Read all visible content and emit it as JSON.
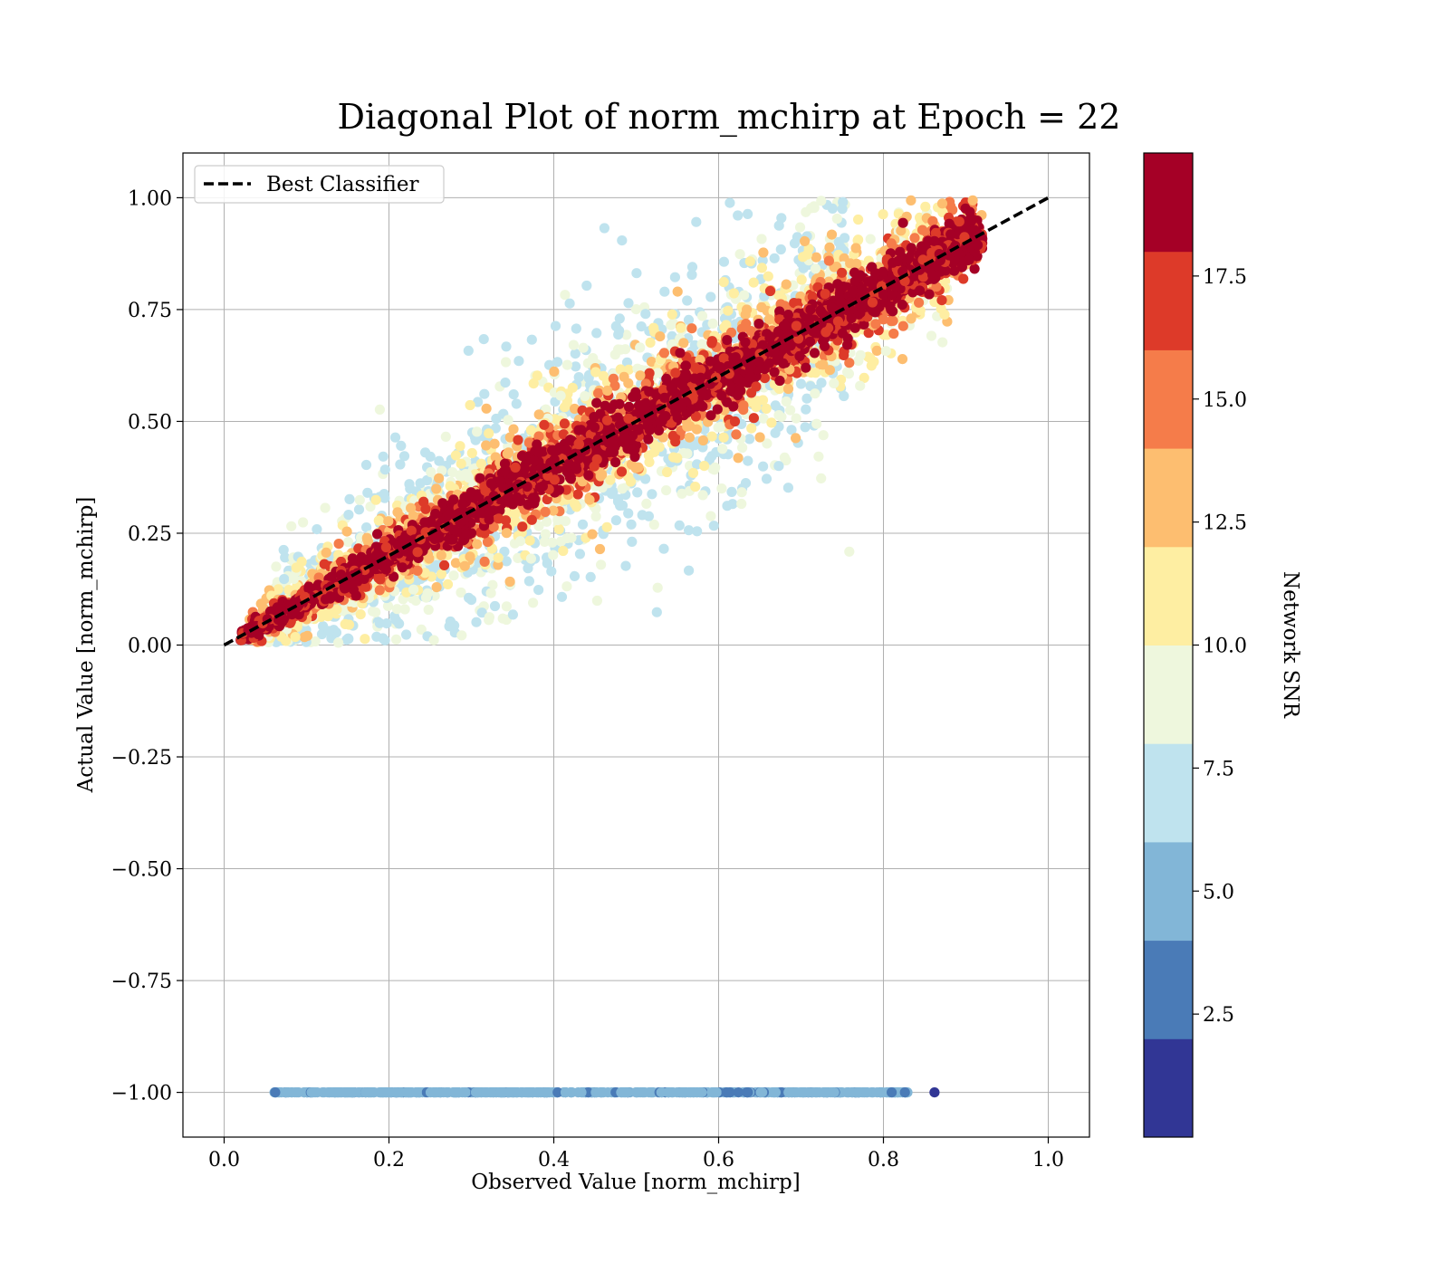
{
  "chart_data": {
    "type": "scatter",
    "title": "Diagonal Plot of norm_mchirp at Epoch = 22",
    "xlabel": "Observed Value [norm_mchirp]",
    "ylabel": "Actual Value [norm_mchirp]",
    "xlim": [
      -0.05,
      1.05
    ],
    "ylim": [
      -1.1,
      1.1
    ],
    "xticks": [
      0.0,
      0.2,
      0.4,
      0.6,
      0.8,
      1.0
    ],
    "xtick_labels": [
      "0.0",
      "0.2",
      "0.4",
      "0.6",
      "0.8",
      "1.0"
    ],
    "yticks": [
      1.0,
      0.75,
      0.5,
      0.25,
      0.0,
      -0.25,
      -0.5,
      -0.75,
      -1.0
    ],
    "ytick_labels": [
      "1.00",
      "0.75",
      "0.50",
      "0.25",
      "0.00",
      "−0.25",
      "−0.50",
      "−0.75",
      "−1.00"
    ],
    "grid": true,
    "legend": {
      "placement": "top-left",
      "entries": [
        "Best Classifier"
      ]
    },
    "reference_line": {
      "name": "Best Classifier",
      "x": [
        0.0,
        1.0
      ],
      "y": [
        0.0,
        1.0
      ],
      "style": "dashed",
      "color": "#000000"
    },
    "colorbar": {
      "label": "Network SNR",
      "range": [
        0,
        20
      ],
      "bounds": [
        0,
        2,
        4,
        6,
        8,
        10,
        12,
        14,
        16,
        18,
        20
      ],
      "colors": [
        "#313695",
        "#4a7bb7",
        "#82b6d7",
        "#bfe3ee",
        "#eef7dd",
        "#feeea2",
        "#fdbe70",
        "#f57c4a",
        "#dd3a29",
        "#a50026"
      ],
      "ticks": [
        2.5,
        5.0,
        7.5,
        10.0,
        12.5,
        15.0,
        17.5
      ],
      "tick_labels": [
        "2.5",
        "5.0",
        "7.5",
        "10.0",
        "12.5",
        "15.0",
        "17.5"
      ]
    },
    "point_clouds": [
      {
        "description_snr_band": "0-8",
        "x_range": [
          0.06,
          0.86
        ],
        "y": -1.0
      },
      {
        "snr_band": "6-10",
        "x_range": [
          0.05,
          0.75
        ],
        "trend": "y = x",
        "spread": 0.22
      },
      {
        "snr_band": "10-16",
        "x_range": [
          0.03,
          0.92
        ],
        "trend": "y = x",
        "spread": 0.12
      },
      {
        "snr_band": "16-20",
        "x_range": [
          0.02,
          0.92
        ],
        "trend": "y = x",
        "spread": 0.06
      }
    ]
  }
}
